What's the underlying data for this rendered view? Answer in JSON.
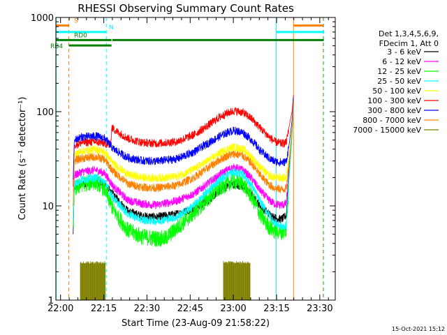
{
  "chart_data": {
    "type": "line",
    "title": "RHESSI Observing Summary Count Rates",
    "xlabel": "Start Time (23-Aug-09 21:58:22)",
    "ylabel": "Count Rate (s⁻¹ detector⁻¹)",
    "x_unit": "minutes since 21:58:22",
    "xlim": [
      0,
      97
    ],
    "ylim": [
      1,
      1000
    ],
    "yscale": "log",
    "xticks": [
      {
        "t": 1.63,
        "label": "22:00"
      },
      {
        "t": 16.63,
        "label": "22:15"
      },
      {
        "t": 31.63,
        "label": "22:30"
      },
      {
        "t": 46.63,
        "label": "22:45"
      },
      {
        "t": 61.63,
        "label": "23:00"
      },
      {
        "t": 76.63,
        "label": "23:15"
      },
      {
        "t": 91.63,
        "label": "23:30"
      }
    ],
    "yticks": [
      {
        "v": 1,
        "label": "1"
      },
      {
        "v": 10,
        "label": "10"
      },
      {
        "v": 100,
        "label": "100"
      },
      {
        "v": 1000,
        "label": "1000"
      }
    ],
    "legend_header": [
      "Det 1,3,4,5,6,9,",
      "FDecim 1, Att 0"
    ],
    "legend_position": "right",
    "series": [
      {
        "name": "3 - 6 keV",
        "color": "#000000",
        "profile": [
          [
            6,
            5
          ],
          [
            6.4,
            16
          ],
          [
            9,
            17
          ],
          [
            14,
            18
          ],
          [
            17,
            17
          ],
          [
            20,
            13
          ],
          [
            25,
            8.8
          ],
          [
            30,
            7.8
          ],
          [
            35,
            7.6
          ],
          [
            42,
            8.2
          ],
          [
            48,
            9.3
          ],
          [
            53,
            11.5
          ],
          [
            57,
            14.5
          ],
          [
            60,
            16.5
          ],
          [
            62,
            17
          ],
          [
            65,
            16
          ],
          [
            68,
            13
          ],
          [
            71,
            10
          ],
          [
            74,
            8.2
          ],
          [
            76,
            7.5
          ],
          [
            78,
            7.2
          ],
          [
            79,
            7.4
          ],
          [
            80,
            8
          ],
          [
            81,
            25
          ],
          [
            82,
            60
          ],
          [
            82.5,
            120
          ]
        ]
      },
      {
        "name": "6 - 12 keV",
        "color": "#ff00ff",
        "profile": [
          [
            6,
            7
          ],
          [
            6.4,
            21
          ],
          [
            9,
            23
          ],
          [
            14,
            24
          ],
          [
            17,
            22
          ],
          [
            20,
            16
          ],
          [
            25,
            11.5
          ],
          [
            30,
            10.5
          ],
          [
            35,
            10.2
          ],
          [
            42,
            11.3
          ],
          [
            48,
            13.5
          ],
          [
            53,
            17.5
          ],
          [
            57,
            21.5
          ],
          [
            60,
            24.5
          ],
          [
            62,
            25.5
          ],
          [
            65,
            24
          ],
          [
            68,
            19.5
          ],
          [
            71,
            14.5
          ],
          [
            74,
            11.5
          ],
          [
            76,
            10.5
          ],
          [
            78,
            10.2
          ],
          [
            79,
            10.3
          ],
          [
            80,
            10.6
          ],
          [
            81,
            28
          ],
          [
            82,
            62
          ],
          [
            82.5,
            125
          ]
        ]
      },
      {
        "name": "12 - 25 keV",
        "color": "#00ff00",
        "profile": [
          [
            6,
            6
          ],
          [
            6.4,
            15
          ],
          [
            9,
            17
          ],
          [
            14,
            18
          ],
          [
            17,
            15
          ],
          [
            20,
            9
          ],
          [
            25,
            5.5
          ],
          [
            30,
            4.7
          ],
          [
            35,
            4.5
          ],
          [
            38,
            4.5
          ],
          [
            42,
            5.8
          ],
          [
            48,
            8.5
          ],
          [
            53,
            12
          ],
          [
            57,
            15.5
          ],
          [
            60,
            17.5
          ],
          [
            62,
            18.2
          ],
          [
            65,
            17
          ],
          [
            68,
            12.5
          ],
          [
            71,
            8
          ],
          [
            74,
            6
          ],
          [
            76,
            5.4
          ],
          [
            78,
            5.3
          ],
          [
            79,
            5.3
          ],
          [
            80,
            5.6
          ],
          [
            81,
            20
          ],
          [
            82,
            55
          ],
          [
            82.5,
            115
          ]
        ]
      },
      {
        "name": "25 - 50 keV",
        "color": "#00ffff",
        "profile": [
          [
            6,
            7
          ],
          [
            6.4,
            17
          ],
          [
            9,
            19
          ],
          [
            14,
            20
          ],
          [
            17,
            18
          ],
          [
            20,
            12
          ],
          [
            25,
            8.2
          ],
          [
            30,
            7.1
          ],
          [
            35,
            6.9
          ],
          [
            42,
            7.6
          ],
          [
            48,
            10.2
          ],
          [
            53,
            14.5
          ],
          [
            57,
            19
          ],
          [
            60,
            22
          ],
          [
            62,
            22.8
          ],
          [
            65,
            21.5
          ],
          [
            68,
            16.5
          ],
          [
            71,
            11
          ],
          [
            74,
            8
          ],
          [
            76,
            6.6
          ],
          [
            78,
            6.1
          ],
          [
            79,
            6
          ],
          [
            80,
            6.2
          ],
          [
            81,
            22
          ],
          [
            82,
            58
          ],
          [
            82.5,
            118
          ]
        ]
      },
      {
        "name": "50 - 100 keV",
        "color": "#ffff00",
        "profile": [
          [
            6,
            12
          ],
          [
            6.4,
            35
          ],
          [
            9,
            38
          ],
          [
            14,
            40
          ],
          [
            17,
            37
          ],
          [
            20,
            28
          ],
          [
            25,
            21.5
          ],
          [
            30,
            20
          ],
          [
            35,
            19.7
          ],
          [
            42,
            20.5
          ],
          [
            48,
            24.5
          ],
          [
            53,
            30.5
          ],
          [
            57,
            36.5
          ],
          [
            60,
            40.5
          ],
          [
            62,
            42
          ],
          [
            65,
            40
          ],
          [
            68,
            33
          ],
          [
            71,
            25.5
          ],
          [
            74,
            21
          ],
          [
            76,
            20
          ],
          [
            78,
            19.8
          ],
          [
            79,
            19.8
          ],
          [
            80,
            20
          ],
          [
            81,
            35
          ],
          [
            82,
            70
          ],
          [
            82.5,
            135
          ]
        ]
      },
      {
        "name": "100 - 300 keV",
        "color": "#ff0000",
        "profile": [
          [
            6,
            16
          ],
          [
            6.4,
            44
          ],
          [
            9,
            47
          ],
          [
            14,
            48
          ],
          [
            17,
            46
          ],
          [
            19,
            44
          ],
          [
            19.4,
            68
          ],
          [
            21,
            62
          ],
          [
            25,
            52
          ],
          [
            30,
            47
          ],
          [
            35,
            46
          ],
          [
            42,
            48
          ],
          [
            48,
            57
          ],
          [
            53,
            72
          ],
          [
            57,
            88
          ],
          [
            60,
            98
          ],
          [
            62,
            102
          ],
          [
            65,
            98
          ],
          [
            68,
            84
          ],
          [
            71,
            67
          ],
          [
            74,
            54
          ],
          [
            76,
            48
          ],
          [
            78,
            46
          ],
          [
            79,
            46
          ],
          [
            80,
            47
          ],
          [
            81,
            70
          ],
          [
            82,
            100
          ],
          [
            82.5,
            150
          ]
        ]
      },
      {
        "name": "300 - 800 keV",
        "color": "#0000ff",
        "profile": [
          [
            6,
            19
          ],
          [
            6.4,
            50
          ],
          [
            9,
            54
          ],
          [
            14,
            55
          ],
          [
            17,
            52
          ],
          [
            20,
            40
          ],
          [
            25,
            32.5
          ],
          [
            30,
            30.2
          ],
          [
            35,
            29.8
          ],
          [
            42,
            31.5
          ],
          [
            48,
            37.5
          ],
          [
            53,
            46.5
          ],
          [
            57,
            55
          ],
          [
            60,
            61
          ],
          [
            62,
            63
          ],
          [
            65,
            60
          ],
          [
            68,
            50
          ],
          [
            71,
            38.5
          ],
          [
            74,
            32
          ],
          [
            76,
            29.6
          ],
          [
            78,
            29
          ],
          [
            79,
            29
          ],
          [
            80,
            29.5
          ],
          [
            81,
            45
          ],
          [
            82,
            80
          ],
          [
            82.5,
            140
          ]
        ]
      },
      {
        "name": "800 - 7000 keV",
        "color": "#ff8000",
        "profile": [
          [
            6,
            10
          ],
          [
            6.4,
            30
          ],
          [
            9,
            32
          ],
          [
            14,
            33
          ],
          [
            17,
            31
          ],
          [
            20,
            23
          ],
          [
            25,
            17.2
          ],
          [
            30,
            15.8
          ],
          [
            35,
            15.5
          ],
          [
            42,
            16.5
          ],
          [
            48,
            20
          ],
          [
            53,
            25.5
          ],
          [
            57,
            31
          ],
          [
            60,
            34.5
          ],
          [
            62,
            35.5
          ],
          [
            65,
            34
          ],
          [
            68,
            28
          ],
          [
            71,
            21
          ],
          [
            74,
            16.8
          ],
          [
            76,
            15.4
          ],
          [
            78,
            15
          ],
          [
            79,
            15
          ],
          [
            80,
            15.3
          ],
          [
            81,
            30
          ],
          [
            82,
            65
          ],
          [
            82.5,
            128
          ]
        ]
      },
      {
        "name": "7000 - 15000 keV",
        "color": "#808000",
        "profile": []
      }
    ],
    "state_bars": [
      {
        "label": "S",
        "color": "#ff8000",
        "segments": [
          [
            0,
            4.5
          ],
          [
            82.5,
            93
          ]
        ],
        "v": 820
      },
      {
        "label": "N",
        "color": "#00ffff",
        "segments": [
          [
            0,
            17.5
          ],
          [
            76.5,
            93
          ]
        ],
        "v": 700
      },
      {
        "label": "RD0",
        "color": "#008000",
        "segments": [
          [
            0,
            19.3
          ],
          [
            19.6,
            93
          ]
        ],
        "v": 575
      },
      {
        "label": "RB4",
        "color": "#008000",
        "segments": [
          [
            4.5,
            19.3
          ]
        ],
        "v": 505
      }
    ],
    "vertical_lines": [
      {
        "t": 4.5,
        "color": "#ff8000",
        "dashed": true
      },
      {
        "t": 17.5,
        "color": "#00ffff",
        "dashed": true
      },
      {
        "t": 0.1,
        "color": "#00ffff",
        "dashed": false
      },
      {
        "t": 76.5,
        "color": "#00ffff",
        "dashed": false
      },
      {
        "t": 82.5,
        "color": "#ff8000",
        "dashed": false
      },
      {
        "t": 92.8,
        "color": "#ff8000",
        "dashed": true
      },
      {
        "t": 93.05,
        "color": "#00ffff",
        "dashed": true
      }
    ],
    "att_blocks": [
      {
        "t0": 8.5,
        "t1": 17.2,
        "ytop": 2.6
      },
      {
        "t0": 58.2,
        "t1": 67.5,
        "ytop": 2.6
      }
    ]
  },
  "footer": {
    "timestamp": "15-Oct-2021 15:12"
  }
}
